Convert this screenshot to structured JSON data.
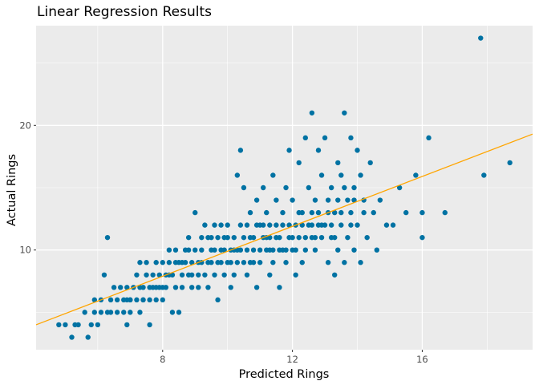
{
  "chart_data": {
    "type": "scatter",
    "title": "Linear Regression Results",
    "xlabel": "Predicted Rings",
    "ylabel": "Actual Rings",
    "xlim": [
      4.1,
      19.4
    ],
    "ylim": [
      2.0,
      28.0
    ],
    "x_ticks": [
      8,
      12,
      16
    ],
    "y_ticks": [
      10,
      20
    ],
    "x_minor_ticks": [
      6,
      10,
      14,
      18
    ],
    "y_minor_ticks": [
      5,
      15,
      25
    ],
    "grid": true,
    "colors": {
      "panel": "#ebebeb",
      "grid": "#ffffff",
      "points": "#0072a3",
      "fit_line": "#ffa500"
    },
    "fit_line": {
      "x": [
        4.1,
        19.4
      ],
      "y": [
        4.0,
        19.3
      ]
    },
    "points": [
      [
        4.8,
        4
      ],
      [
        5.0,
        4
      ],
      [
        5.2,
        3
      ],
      [
        5.3,
        4
      ],
      [
        5.4,
        4
      ],
      [
        5.6,
        5
      ],
      [
        5.7,
        3
      ],
      [
        5.8,
        4
      ],
      [
        5.9,
        6
      ],
      [
        6.0,
        4
      ],
      [
        5.9,
        5
      ],
      [
        6.1,
        5
      ],
      [
        6.1,
        6
      ],
      [
        6.2,
        8
      ],
      [
        6.3,
        11
      ],
      [
        6.3,
        5
      ],
      [
        6.4,
        6
      ],
      [
        6.4,
        5
      ],
      [
        6.5,
        7
      ],
      [
        6.6,
        5
      ],
      [
        6.6,
        6
      ],
      [
        6.7,
        7
      ],
      [
        6.8,
        5
      ],
      [
        6.8,
        6
      ],
      [
        6.9,
        4
      ],
      [
        6.9,
        7
      ],
      [
        7.0,
        6
      ],
      [
        7.0,
        5
      ],
      [
        7.1,
        7
      ],
      [
        7.2,
        6
      ],
      [
        7.2,
        8
      ],
      [
        7.3,
        9
      ],
      [
        7.3,
        5
      ],
      [
        7.4,
        7
      ],
      [
        7.4,
        6
      ],
      [
        7.5,
        9
      ],
      [
        7.5,
        8
      ],
      [
        7.6,
        6
      ],
      [
        7.6,
        4
      ],
      [
        7.7,
        7
      ],
      [
        7.7,
        8
      ],
      [
        7.8,
        6
      ],
      [
        7.8,
        9
      ],
      [
        7.9,
        7
      ],
      [
        7.9,
        8
      ],
      [
        8.0,
        6
      ],
      [
        8.0,
        9
      ],
      [
        8.1,
        7
      ],
      [
        8.1,
        8
      ],
      [
        8.2,
        9
      ],
      [
        8.2,
        10
      ],
      [
        8.3,
        5
      ],
      [
        8.3,
        8
      ],
      [
        8.4,
        7
      ],
      [
        8.4,
        10
      ],
      [
        8.5,
        5
      ],
      [
        8.5,
        9
      ],
      [
        8.6,
        8
      ],
      [
        8.6,
        7
      ],
      [
        8.7,
        10
      ],
      [
        8.7,
        9
      ],
      [
        8.8,
        11
      ],
      [
        8.8,
        8
      ],
      [
        8.9,
        7
      ],
      [
        8.9,
        9
      ],
      [
        9.0,
        13
      ],
      [
        9.0,
        10
      ],
      [
        9.1,
        8
      ],
      [
        9.1,
        7
      ],
      [
        9.2,
        10
      ],
      [
        9.2,
        9
      ],
      [
        9.3,
        12
      ],
      [
        9.3,
        8
      ],
      [
        9.4,
        11
      ],
      [
        9.4,
        7
      ],
      [
        9.5,
        9
      ],
      [
        9.5,
        10
      ],
      [
        9.6,
        12
      ],
      [
        9.6,
        8
      ],
      [
        9.7,
        6
      ],
      [
        9.7,
        11
      ],
      [
        9.8,
        9
      ],
      [
        9.8,
        10
      ],
      [
        9.9,
        8
      ],
      [
        9.9,
        11
      ],
      [
        10.0,
        12
      ],
      [
        10.0,
        9
      ],
      [
        10.1,
        7
      ],
      [
        10.1,
        10
      ],
      [
        10.2,
        11
      ],
      [
        10.2,
        8
      ],
      [
        10.3,
        16
      ],
      [
        10.3,
        9
      ],
      [
        10.4,
        18
      ],
      [
        10.4,
        10
      ],
      [
        10.5,
        15
      ],
      [
        10.5,
        11
      ],
      [
        10.6,
        12
      ],
      [
        10.6,
        8
      ],
      [
        10.7,
        13
      ],
      [
        10.7,
        9
      ],
      [
        10.8,
        11
      ],
      [
        10.8,
        10
      ],
      [
        10.9,
        14
      ],
      [
        10.9,
        7
      ],
      [
        11.0,
        12
      ],
      [
        11.0,
        9
      ],
      [
        11.1,
        15
      ],
      [
        11.1,
        11
      ],
      [
        11.2,
        10
      ],
      [
        11.2,
        13
      ],
      [
        11.3,
        8
      ],
      [
        11.3,
        12
      ],
      [
        11.4,
        16
      ],
      [
        11.4,
        9
      ],
      [
        11.5,
        14
      ],
      [
        11.5,
        11
      ],
      [
        11.6,
        10
      ],
      [
        11.6,
        7
      ],
      [
        11.7,
        13
      ],
      [
        11.7,
        12
      ],
      [
        11.8,
        15
      ],
      [
        11.8,
        9
      ],
      [
        11.9,
        18
      ],
      [
        11.9,
        11
      ],
      [
        12.0,
        10
      ],
      [
        12.0,
        14
      ],
      [
        12.1,
        12
      ],
      [
        12.1,
        8
      ],
      [
        12.2,
        17
      ],
      [
        12.2,
        11
      ],
      [
        12.3,
        13
      ],
      [
        12.3,
        9
      ],
      [
        12.4,
        19
      ],
      [
        12.4,
        10
      ],
      [
        12.5,
        15
      ],
      [
        12.5,
        12
      ],
      [
        12.6,
        21
      ],
      [
        12.6,
        11
      ],
      [
        12.7,
        14
      ],
      [
        12.7,
        10
      ],
      [
        12.8,
        18
      ],
      [
        12.8,
        13
      ],
      [
        12.9,
        16
      ],
      [
        12.9,
        11
      ],
      [
        13.0,
        19
      ],
      [
        13.0,
        12
      ],
      [
        13.1,
        9
      ],
      [
        13.1,
        14
      ],
      [
        13.2,
        11
      ],
      [
        13.2,
        15
      ],
      [
        13.3,
        8
      ],
      [
        13.3,
        13
      ],
      [
        13.4,
        17
      ],
      [
        13.4,
        10
      ],
      [
        13.5,
        12
      ],
      [
        13.5,
        16
      ],
      [
        13.6,
        21
      ],
      [
        13.6,
        9
      ],
      [
        13.7,
        14
      ],
      [
        13.7,
        11
      ],
      [
        13.8,
        19
      ],
      [
        13.8,
        13
      ],
      [
        13.9,
        10
      ],
      [
        13.9,
        15
      ],
      [
        14.0,
        18
      ],
      [
        14.0,
        12
      ],
      [
        14.1,
        16
      ],
      [
        14.1,
        9
      ],
      [
        14.2,
        14
      ],
      [
        14.3,
        11
      ],
      [
        14.4,
        17
      ],
      [
        14.5,
        13
      ],
      [
        14.6,
        10
      ],
      [
        14.7,
        14
      ],
      [
        14.9,
        12
      ],
      [
        15.1,
        12
      ],
      [
        15.3,
        15
      ],
      [
        15.5,
        13
      ],
      [
        15.8,
        16
      ],
      [
        16.0,
        13
      ],
      [
        16.0,
        11
      ],
      [
        16.2,
        19
      ],
      [
        16.7,
        13
      ],
      [
        17.8,
        27
      ],
      [
        17.9,
        16
      ],
      [
        18.7,
        17
      ],
      [
        7.0,
        6
      ],
      [
        7.4,
        6
      ],
      [
        7.8,
        7
      ],
      [
        8.0,
        7
      ],
      [
        8.6,
        9
      ],
      [
        8.9,
        8
      ],
      [
        9.1,
        9
      ],
      [
        9.4,
        9
      ],
      [
        9.6,
        10
      ],
      [
        9.9,
        10
      ],
      [
        10.1,
        9
      ],
      [
        10.3,
        10
      ],
      [
        10.6,
        10
      ],
      [
        10.8,
        9
      ],
      [
        11.0,
        10
      ],
      [
        11.2,
        11
      ],
      [
        11.4,
        10
      ],
      [
        11.6,
        11
      ],
      [
        11.8,
        10
      ],
      [
        12.0,
        11
      ],
      [
        12.3,
        12
      ],
      [
        12.6,
        12
      ],
      [
        12.9,
        12
      ],
      [
        13.1,
        13
      ],
      [
        13.5,
        13
      ],
      [
        13.9,
        14
      ],
      [
        14.2,
        13
      ],
      [
        9.2,
        11
      ],
      [
        9.8,
        12
      ],
      [
        10.4,
        12
      ],
      [
        10.9,
        12
      ],
      [
        11.3,
        11
      ],
      [
        11.7,
        10
      ],
      [
        12.1,
        10
      ],
      [
        12.6,
        13
      ],
      [
        13.2,
        12
      ],
      [
        8.4,
        9
      ],
      [
        8.8,
        10
      ],
      [
        9.5,
        11
      ],
      [
        10.0,
        11
      ],
      [
        10.7,
        11
      ],
      [
        11.1,
        12
      ],
      [
        11.5,
        12
      ],
      [
        11.9,
        12
      ],
      [
        12.4,
        11
      ],
      [
        12.8,
        12
      ],
      [
        13.4,
        14
      ],
      [
        13.8,
        12
      ],
      [
        7.6,
        7
      ],
      [
        8.2,
        8
      ],
      [
        6.9,
        6
      ],
      [
        7.3,
        7
      ],
      [
        9.7,
        9
      ],
      [
        10.2,
        10
      ],
      [
        10.5,
        9
      ],
      [
        11.3,
        10
      ],
      [
        12.2,
        13
      ],
      [
        12.7,
        11
      ],
      [
        13.3,
        11
      ],
      [
        13.6,
        15
      ]
    ]
  }
}
